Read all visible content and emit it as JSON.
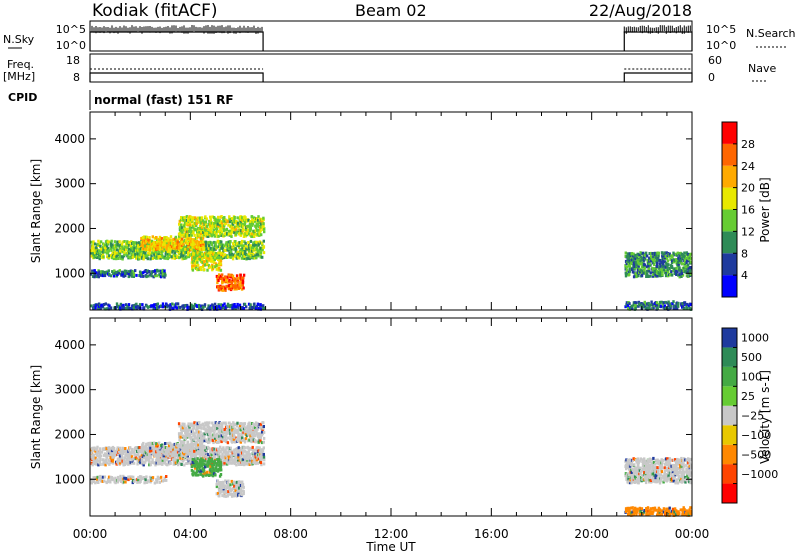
{
  "header": {
    "station": "Kodiak (fitACF)",
    "beam": "Beam 02",
    "date": "22/Aug/2018"
  },
  "nsky_panel": {
    "left_label": "N.Sky",
    "right_label": "N.Search",
    "left_ticks": [
      "10^5",
      "10^0"
    ],
    "right_ticks": [
      "10^5",
      "10^0"
    ]
  },
  "freq_panel": {
    "left_label_line1": "Freq.",
    "left_label_line2": "[MHz]",
    "right_label": "Nave",
    "left_ticks": [
      "18",
      "8"
    ],
    "right_ticks": [
      "60",
      "0"
    ]
  },
  "cpid": {
    "label": "CPID",
    "value": "normal (fast) 151 RF"
  },
  "x_axis": {
    "label": "Time UT",
    "ticks": [
      "00:00",
      "04:00",
      "08:00",
      "12:00",
      "16:00",
      "20:00",
      "00:00"
    ]
  },
  "operating_windows_hours": [
    [
      0.0,
      6.9
    ],
    [
      21.3,
      24.0
    ]
  ],
  "chart_data": [
    {
      "type": "heatmap",
      "name": "power",
      "ylabel": "Slant Range [km]",
      "yticks": [
        "1000",
        "2000",
        "3000",
        "4000"
      ],
      "ylim": [
        180,
        4600
      ],
      "xlim_hours": [
        0,
        24
      ],
      "colorbar": {
        "label": "Power [dB]",
        "ticks": [
          "4",
          "8",
          "12",
          "16",
          "20",
          "24",
          "28"
        ],
        "range": [
          0,
          32
        ],
        "colors": [
          "#0000ff",
          "#1e3a9e",
          "#2e8b57",
          "#66cc33",
          "#e8e800",
          "#ffaa00",
          "#ff6600",
          "#ff0000"
        ]
      },
      "echo_regions": [
        {
          "t0": 0.0,
          "t1": 6.9,
          "r0": 1350,
          "r1": 1750,
          "level": 14
        },
        {
          "t0": 2.0,
          "t1": 4.5,
          "r0": 1550,
          "r1": 1850,
          "level": 20
        },
        {
          "t0": 3.5,
          "t1": 6.9,
          "r0": 1850,
          "r1": 2300,
          "level": 16
        },
        {
          "t0": 0.0,
          "t1": 3.0,
          "r0": 950,
          "r1": 1100,
          "level": 8
        },
        {
          "t0": 4.0,
          "t1": 5.2,
          "r0": 1100,
          "r1": 1500,
          "level": 18
        },
        {
          "t0": 5.0,
          "t1": 6.1,
          "r0": 650,
          "r1": 1000,
          "level": 26
        },
        {
          "t0": 0.0,
          "t1": 6.9,
          "r0": 200,
          "r1": 350,
          "level": 6
        },
        {
          "t0": 21.3,
          "t1": 24.0,
          "r0": 950,
          "r1": 1500,
          "level": 10
        },
        {
          "t0": 21.3,
          "t1": 24.0,
          "r0": 200,
          "r1": 400,
          "level": 8
        }
      ]
    },
    {
      "type": "heatmap",
      "name": "velocity",
      "ylabel": "Slant Range [km]",
      "yticks": [
        "1000",
        "2000",
        "3000",
        "4000"
      ],
      "ylim": [
        180,
        4600
      ],
      "xlim_hours": [
        0,
        24
      ],
      "colorbar": {
        "label": "Velocity [m s-1]",
        "ticks": [
          "1000",
          "500",
          "100",
          "25",
          "-25",
          "-100",
          "-500",
          "-1000"
        ],
        "colors": [
          "#1e3a9e",
          "#2e8b57",
          "#44aa44",
          "#66cc33",
          "#c8c8c8",
          "#e8c800",
          "#ff8800",
          "#ff4400",
          "#ff0000"
        ]
      },
      "echo_regions": [
        {
          "t0": 0.0,
          "t1": 6.9,
          "r0": 1350,
          "r1": 1750,
          "level": 25
        },
        {
          "t0": 2.0,
          "t1": 4.5,
          "r0": 1550,
          "r1": 1850,
          "level": 25
        },
        {
          "t0": 3.5,
          "t1": 6.9,
          "r0": 1850,
          "r1": 2300,
          "level": 25
        },
        {
          "t0": 0.0,
          "t1": 3.0,
          "r0": 950,
          "r1": 1100,
          "level": 25
        },
        {
          "t0": 4.0,
          "t1": 5.2,
          "r0": 1100,
          "r1": 1500,
          "level": 100
        },
        {
          "t0": 5.0,
          "t1": 6.1,
          "r0": 650,
          "r1": 1000,
          "level": 25
        },
        {
          "t0": 21.3,
          "t1": 24.0,
          "r0": 950,
          "r1": 1500,
          "level": 25
        },
        {
          "t0": 21.3,
          "t1": 24.0,
          "r0": 200,
          "r1": 400,
          "level": -100
        }
      ]
    }
  ]
}
